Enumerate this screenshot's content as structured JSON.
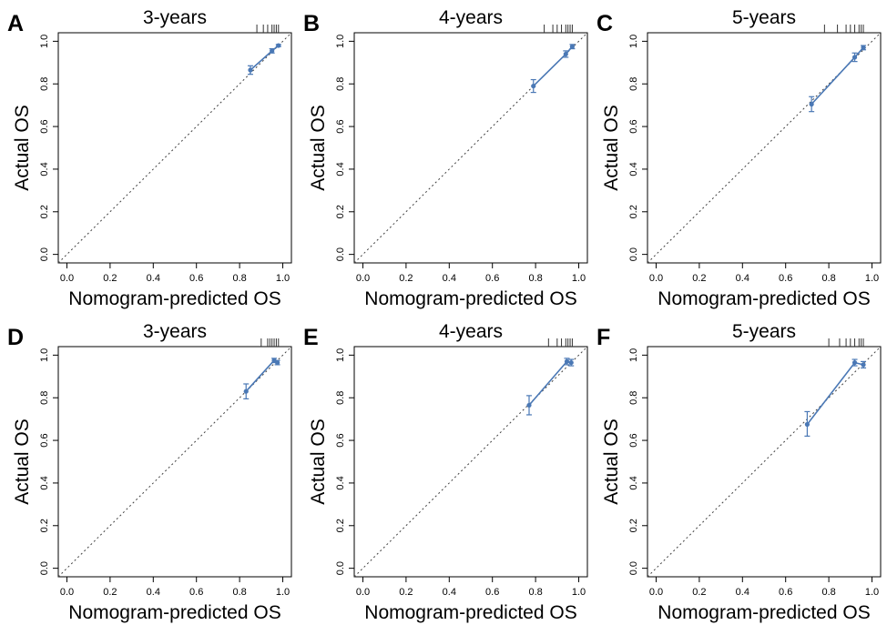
{
  "colors": {
    "calibration": "#4a78b5",
    "ideal": "#404040",
    "axis": "#000000"
  },
  "chart_data": [
    {
      "panel_label": "A",
      "type": "line",
      "title": "3-years",
      "xlabel": "Nomogram-predicted OS",
      "ylabel": "Actual OS",
      "xlim": [
        0,
        1
      ],
      "ylim": [
        0,
        1
      ],
      "grid": false,
      "xticks": [
        "0.0",
        "0.2",
        "0.4",
        "0.6",
        "0.8",
        "1.0"
      ],
      "yticks": [
        "0.0",
        "0.2",
        "0.4",
        "0.6",
        "0.8",
        "1.0"
      ],
      "ideal_line": true,
      "points": [
        {
          "x": 0.85,
          "y": 0.865,
          "ylo": 0.845,
          "yhi": 0.885
        },
        {
          "x": 0.95,
          "y": 0.955,
          "ylo": 0.945,
          "yhi": 0.965
        },
        {
          "x": 0.98,
          "y": 0.98,
          "ylo": 0.975,
          "yhi": 0.985
        }
      ],
      "rug": [
        0.88,
        0.91,
        0.93,
        0.95,
        0.96,
        0.97,
        0.98
      ]
    },
    {
      "panel_label": "B",
      "type": "line",
      "title": "4-years",
      "xlabel": "Nomogram-predicted OS",
      "ylabel": "Actual OS",
      "xlim": [
        0,
        1
      ],
      "ylim": [
        0,
        1
      ],
      "grid": false,
      "xticks": [
        "0.0",
        "0.2",
        "0.4",
        "0.6",
        "0.8",
        "1.0"
      ],
      "yticks": [
        "0.0",
        "0.2",
        "0.4",
        "0.6",
        "0.8",
        "1.0"
      ],
      "ideal_line": true,
      "points": [
        {
          "x": 0.79,
          "y": 0.79,
          "ylo": 0.76,
          "yhi": 0.82
        },
        {
          "x": 0.94,
          "y": 0.94,
          "ylo": 0.925,
          "yhi": 0.955
        },
        {
          "x": 0.97,
          "y": 0.975,
          "ylo": 0.965,
          "yhi": 0.985
        }
      ],
      "rug": [
        0.84,
        0.88,
        0.9,
        0.92,
        0.94,
        0.95,
        0.96,
        0.97
      ]
    },
    {
      "panel_label": "C",
      "type": "line",
      "title": "5-years",
      "xlabel": "Nomogram-predicted OS",
      "ylabel": "Actual OS",
      "xlim": [
        0,
        1
      ],
      "ylim": [
        0,
        1
      ],
      "grid": false,
      "xticks": [
        "0.0",
        "0.2",
        "0.4",
        "0.6",
        "0.8",
        "1.0"
      ],
      "yticks": [
        "0.0",
        "0.2",
        "0.4",
        "0.6",
        "0.8",
        "1.0"
      ],
      "ideal_line": true,
      "points": [
        {
          "x": 0.72,
          "y": 0.705,
          "ylo": 0.67,
          "yhi": 0.74
        },
        {
          "x": 0.92,
          "y": 0.925,
          "ylo": 0.905,
          "yhi": 0.945
        },
        {
          "x": 0.96,
          "y": 0.97,
          "ylo": 0.96,
          "yhi": 0.98
        }
      ],
      "rug": [
        0.78,
        0.84,
        0.88,
        0.9,
        0.92,
        0.94,
        0.95,
        0.96
      ]
    },
    {
      "panel_label": "D",
      "type": "line",
      "title": "3-years",
      "xlabel": "Nomogram-predicted OS",
      "ylabel": "Actual OS",
      "xlim": [
        0,
        1
      ],
      "ylim": [
        0,
        1
      ],
      "grid": false,
      "xticks": [
        "0.0",
        "0.2",
        "0.4",
        "0.6",
        "0.8",
        "1.0"
      ],
      "yticks": [
        "0.0",
        "0.2",
        "0.4",
        "0.6",
        "0.8",
        "1.0"
      ],
      "ideal_line": true,
      "points": [
        {
          "x": 0.83,
          "y": 0.83,
          "ylo": 0.795,
          "yhi": 0.865
        },
        {
          "x": 0.96,
          "y": 0.975,
          "ylo": 0.965,
          "yhi": 0.985
        },
        {
          "x": 0.975,
          "y": 0.965,
          "ylo": 0.955,
          "yhi": 0.975
        }
      ],
      "rug": [
        0.9,
        0.93,
        0.94,
        0.95,
        0.96,
        0.97,
        0.98
      ]
    },
    {
      "panel_label": "E",
      "type": "line",
      "title": "4-years",
      "xlabel": "Nomogram-predicted OS",
      "ylabel": "Actual OS",
      "xlim": [
        0,
        1
      ],
      "ylim": [
        0,
        1
      ],
      "grid": false,
      "xticks": [
        "0.0",
        "0.2",
        "0.4",
        "0.6",
        "0.8",
        "1.0"
      ],
      "yticks": [
        "0.0",
        "0.2",
        "0.4",
        "0.6",
        "0.8",
        "1.0"
      ],
      "ideal_line": true,
      "points": [
        {
          "x": 0.77,
          "y": 0.765,
          "ylo": 0.72,
          "yhi": 0.81
        },
        {
          "x": 0.945,
          "y": 0.97,
          "ylo": 0.955,
          "yhi": 0.985
        },
        {
          "x": 0.965,
          "y": 0.965,
          "ylo": 0.95,
          "yhi": 0.98
        }
      ],
      "rug": [
        0.86,
        0.9,
        0.92,
        0.94,
        0.95,
        0.96,
        0.97
      ]
    },
    {
      "panel_label": "F",
      "type": "line",
      "title": "5-years",
      "xlabel": "Nomogram-predicted OS",
      "ylabel": "Actual OS",
      "xlim": [
        0,
        1
      ],
      "ylim": [
        0,
        1
      ],
      "grid": false,
      "xticks": [
        "0.0",
        "0.2",
        "0.4",
        "0.6",
        "0.8",
        "1.0"
      ],
      "yticks": [
        "0.0",
        "0.2",
        "0.4",
        "0.6",
        "0.8",
        "1.0"
      ],
      "ideal_line": true,
      "points": [
        {
          "x": 0.7,
          "y": 0.675,
          "ylo": 0.62,
          "yhi": 0.735
        },
        {
          "x": 0.92,
          "y": 0.965,
          "ylo": 0.95,
          "yhi": 0.98
        },
        {
          "x": 0.96,
          "y": 0.955,
          "ylo": 0.94,
          "yhi": 0.97
        }
      ],
      "rug": [
        0.8,
        0.85,
        0.88,
        0.9,
        0.92,
        0.94,
        0.95,
        0.96
      ]
    }
  ]
}
